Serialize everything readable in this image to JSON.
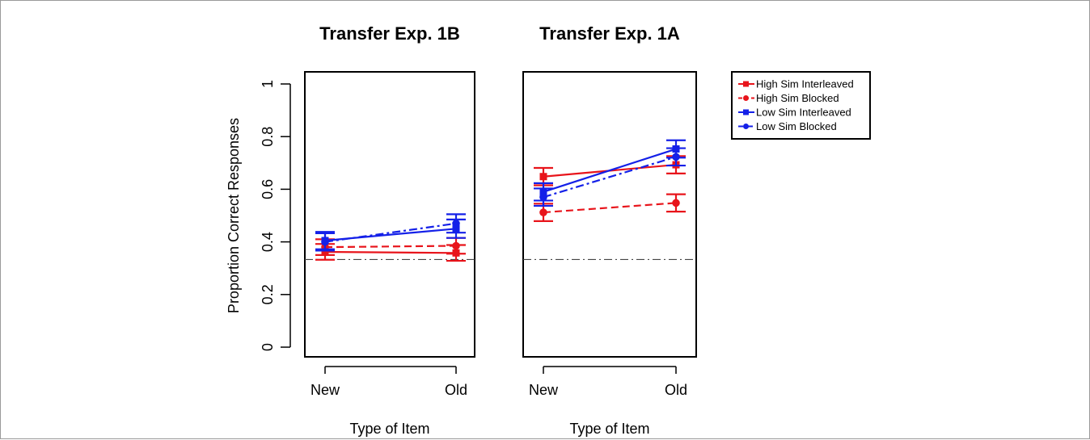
{
  "chart_data": [
    {
      "type": "line",
      "title": "Transfer Exp. 1B",
      "xlabel": "Type of Item",
      "ylabel": "Proportion Correct Responses",
      "categories": [
        "New",
        "Old"
      ],
      "ylim": [
        0,
        1
      ],
      "yticks": [
        "0",
        "0.2",
        "0.4",
        "0.6",
        "0.8",
        "1"
      ],
      "reference_line": 0.333,
      "series": [
        {
          "name": "High Sim Interleaved",
          "color": "#e8141b",
          "line": "solid",
          "marker": "square",
          "values": [
            0.362,
            0.358
          ],
          "errors": [
            0.03,
            0.03
          ]
        },
        {
          "name": "High Sim Blocked",
          "color": "#e8141b",
          "line": "dashed",
          "marker": "circle",
          "values": [
            0.38,
            0.385
          ],
          "errors": [
            0.03,
            0.03
          ]
        },
        {
          "name": "Low Sim Interleaved",
          "color": "#1420e8",
          "line": "solid",
          "marker": "square",
          "values": [
            0.405,
            0.45
          ],
          "errors": [
            0.033,
            0.035
          ]
        },
        {
          "name": "Low Sim Blocked",
          "color": "#1420e8",
          "line": "dashdot",
          "marker": "circle",
          "values": [
            0.4,
            0.47
          ],
          "errors": [
            0.033,
            0.035
          ]
        }
      ]
    },
    {
      "type": "line",
      "title": "Transfer Exp. 1A",
      "xlabel": "Type of Item",
      "ylabel": "",
      "categories": [
        "New",
        "Old"
      ],
      "ylim": [
        0,
        1
      ],
      "reference_line": 0.333,
      "series": [
        {
          "name": "High Sim Interleaved",
          "color": "#e8141b",
          "line": "solid",
          "marker": "square",
          "values": [
            0.648,
            0.693
          ],
          "errors": [
            0.033,
            0.033
          ]
        },
        {
          "name": "High Sim Blocked",
          "color": "#e8141b",
          "line": "dashed",
          "marker": "circle",
          "values": [
            0.512,
            0.548
          ],
          "errors": [
            0.033,
            0.033
          ]
        },
        {
          "name": "Low Sim Interleaved",
          "color": "#1420e8",
          "line": "solid",
          "marker": "square",
          "values": [
            0.59,
            0.753
          ],
          "errors": [
            0.033,
            0.033
          ]
        },
        {
          "name": "Low Sim Blocked",
          "color": "#1420e8",
          "line": "dashdot",
          "marker": "circle",
          "values": [
            0.57,
            0.723
          ],
          "errors": [
            0.033,
            0.033
          ]
        }
      ]
    }
  ],
  "legend": {
    "placement": "right",
    "items": [
      {
        "label": "High Sim Interleaved",
        "color": "#e8141b",
        "line": "solid",
        "marker": "square"
      },
      {
        "label": "High Sim Blocked",
        "color": "#e8141b",
        "line": "dashed",
        "marker": "circle"
      },
      {
        "label": "Low Sim Interleaved",
        "color": "#1420e8",
        "line": "solid",
        "marker": "square"
      },
      {
        "label": "Low Sim Blocked",
        "color": "#1420e8",
        "line": "dashdot",
        "marker": "circle"
      }
    ]
  }
}
